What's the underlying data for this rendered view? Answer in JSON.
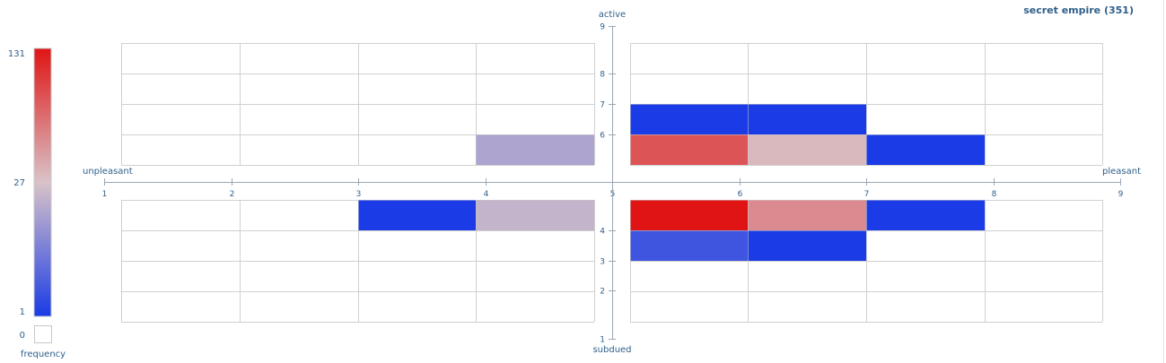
{
  "title": "secret empire (351)",
  "chart_data": {
    "type": "heatmap",
    "title": "secret empire (351)",
    "xlabel_left": "unpleasant",
    "xlabel_right": "pleasant",
    "ylabel_top": "active",
    "ylabel_bottom": "subdued",
    "x_ticks": [
      "1",
      "2",
      "3",
      "4",
      "5",
      "6",
      "7",
      "8",
      "9"
    ],
    "y_ticks": [
      "1",
      "2",
      "3",
      "4",
      "6",
      "7",
      "8",
      "9"
    ],
    "xlim": [
      1,
      9
    ],
    "ylim": [
      1,
      9
    ],
    "cells": [
      {
        "x": 4,
        "y": 5,
        "value": 21
      },
      {
        "x": 5,
        "y": 5,
        "value": 93
      },
      {
        "x": 6,
        "y": 5,
        "value": 33
      },
      {
        "x": 7,
        "y": 5,
        "value": 1
      },
      {
        "x": 5,
        "y": 6,
        "value": 1
      },
      {
        "x": 6,
        "y": 6,
        "value": 1
      },
      {
        "x": 3,
        "y": 4,
        "value": 1
      },
      {
        "x": 4,
        "y": 4,
        "value": 24
      },
      {
        "x": 5,
        "y": 4,
        "value": 131
      },
      {
        "x": 6,
        "y": 4,
        "value": 60
      },
      {
        "x": 7,
        "y": 4,
        "value": 1
      },
      {
        "x": 5,
        "y": 3,
        "value": 6
      },
      {
        "x": 6,
        "y": 3,
        "value": 1
      }
    ],
    "colorscale": {
      "min": 1,
      "mid": 27,
      "max": 131,
      "colors": [
        "#1a3be6",
        "#d9c3c8",
        "#e01414"
      ],
      "tick_labels": [
        "131",
        "27",
        "1"
      ],
      "zero_label": "0",
      "label": "frequency"
    },
    "grid": true
  }
}
